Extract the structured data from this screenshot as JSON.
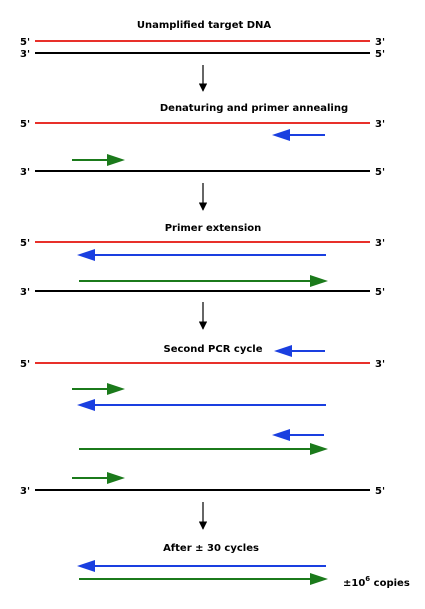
{
  "colors": {
    "template_top": "#e8302a",
    "template_bottom": "#000000",
    "primer_forward": "#1b7a1b",
    "primer_reverse": "#1a3fe0",
    "flow_arrow": "#000000"
  },
  "stages": {
    "s1": {
      "title": "Unamplified target DNA"
    },
    "s2": {
      "title": "Denaturing and primer annealing"
    },
    "s3": {
      "title": "Primer extension"
    },
    "s4": {
      "title": "Second PCR cycle"
    },
    "s5": {
      "title": "After ± 30 cycles"
    }
  },
  "labels": {
    "five_prime": "5'",
    "three_prime": "3'"
  },
  "result": {
    "copies_prefix": "±10",
    "copies_exponent": "6",
    "copies_suffix": " copies"
  }
}
